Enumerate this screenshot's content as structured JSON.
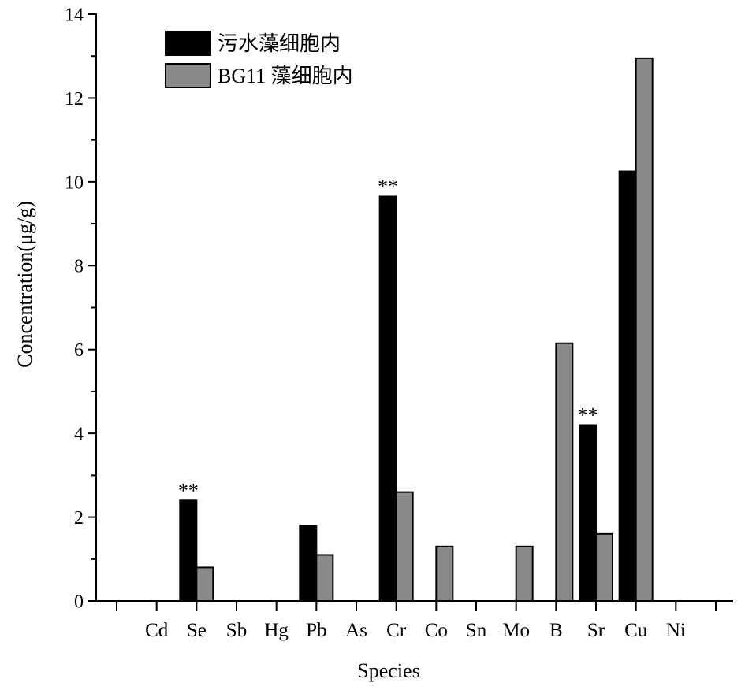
{
  "chart_data": {
    "type": "bar",
    "xlabel": "Species",
    "ylabel": "Concentration(μg/g)",
    "ylim": [
      0,
      14
    ],
    "yticks": [
      0,
      2,
      4,
      6,
      8,
      10,
      12,
      14
    ],
    "y_minor_tick_step": 1,
    "grid": false,
    "legend_position": "top-left",
    "categories": [
      "Cd",
      "Se",
      "Sb",
      "Hg",
      "Pb",
      "As",
      "Cr",
      "Co",
      "Sn",
      "Mo",
      "B",
      "Sr",
      "Cu",
      "Ni"
    ],
    "series": [
      {
        "name": "污水藻细胞内",
        "color": "#000000",
        "values": [
          0,
          2.4,
          0,
          0,
          1.8,
          0,
          9.65,
          0,
          0,
          0,
          0,
          4.2,
          10.25,
          0
        ]
      },
      {
        "name": "BG11 藻细胞内",
        "color": "#8a8a8a",
        "values": [
          0,
          0.8,
          0,
          0,
          1.1,
          0,
          2.6,
          1.3,
          0,
          1.3,
          6.15,
          1.6,
          12.95,
          0
        ]
      }
    ],
    "annotations": [
      {
        "category": "Se",
        "series": 0,
        "text": "**"
      },
      {
        "category": "Cr",
        "series": 0,
        "text": "**"
      },
      {
        "category": "Sr",
        "series": 0,
        "text": "**"
      }
    ]
  }
}
